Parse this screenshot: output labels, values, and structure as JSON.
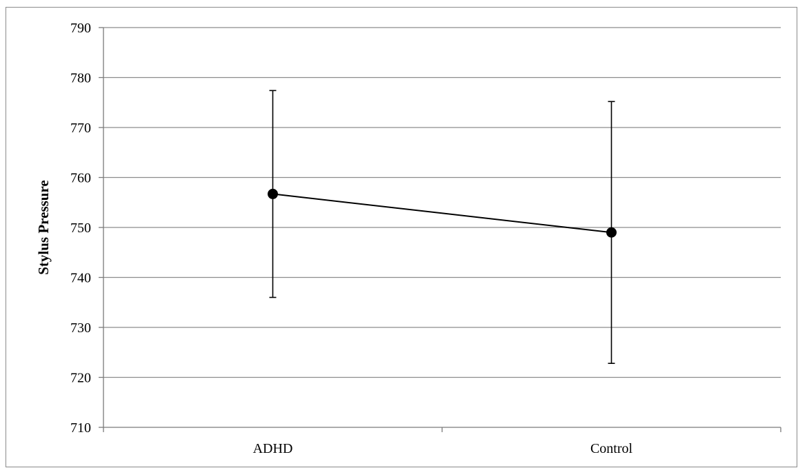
{
  "chart_data": {
    "type": "line",
    "title": "",
    "xlabel": "",
    "ylabel": "Stylus Pressure",
    "categories": [
      "ADHD",
      "Control"
    ],
    "series": [
      {
        "values": [
          756.7,
          749.0
        ],
        "error_upper": [
          777.4,
          775.2
        ],
        "error_lower": [
          736.0,
          722.8
        ],
        "color": "#000000",
        "marker": "circle"
      }
    ],
    "ylim": [
      710,
      790
    ],
    "yticks": [
      710,
      720,
      730,
      740,
      750,
      760,
      770,
      780,
      790
    ],
    "ytick_labels": [
      "710",
      "720",
      "730",
      "740",
      "750",
      "760",
      "770",
      "780",
      "790"
    ],
    "grid": true,
    "legend": "none"
  }
}
